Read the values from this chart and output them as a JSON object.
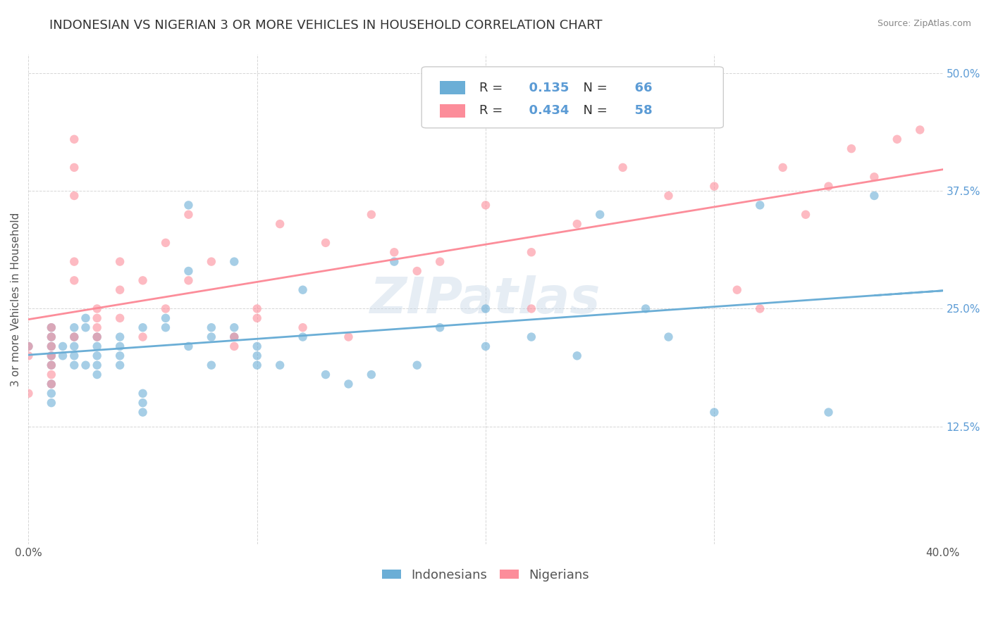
{
  "title": "INDONESIAN VS NIGERIAN 3 OR MORE VEHICLES IN HOUSEHOLD CORRELATION CHART",
  "source": "Source: ZipAtlas.com",
  "xlabel_text": "",
  "ylabel_text": "3 or more Vehicles in Household",
  "watermark": "ZIPatlas",
  "xlim": [
    0.0,
    0.4
  ],
  "ylim": [
    0.0,
    0.52
  ],
  "xticks": [
    0.0,
    0.1,
    0.2,
    0.3,
    0.4
  ],
  "xticklabels": [
    "0.0%",
    "",
    "",
    "",
    "40.0%"
  ],
  "yticks": [
    0.0,
    0.125,
    0.25,
    0.375,
    0.5
  ],
  "yticklabels": [
    "",
    "12.5%",
    "25.0%",
    "37.5%",
    "50.0%"
  ],
  "indonesian_color": "#6baed6",
  "nigerian_color": "#fc8d9a",
  "indonesian_R": 0.135,
  "indonesian_N": 66,
  "nigerian_R": 0.434,
  "nigerian_N": 58,
  "legend_label_indonesian": "Indonesians",
  "legend_label_nigerian": "Nigerians",
  "indonesian_x": [
    0.0,
    0.01,
    0.01,
    0.01,
    0.01,
    0.01,
    0.01,
    0.01,
    0.01,
    0.015,
    0.015,
    0.02,
    0.02,
    0.02,
    0.02,
    0.02,
    0.025,
    0.025,
    0.025,
    0.03,
    0.03,
    0.03,
    0.03,
    0.03,
    0.04,
    0.04,
    0.04,
    0.04,
    0.05,
    0.05,
    0.05,
    0.05,
    0.06,
    0.06,
    0.07,
    0.07,
    0.07,
    0.08,
    0.08,
    0.08,
    0.09,
    0.09,
    0.09,
    0.1,
    0.1,
    0.1,
    0.11,
    0.12,
    0.12,
    0.13,
    0.14,
    0.15,
    0.16,
    0.17,
    0.18,
    0.2,
    0.2,
    0.22,
    0.24,
    0.25,
    0.27,
    0.28,
    0.3,
    0.32,
    0.35,
    0.37
  ],
  "indonesian_y": [
    0.21,
    0.19,
    0.2,
    0.21,
    0.22,
    0.23,
    0.17,
    0.16,
    0.15,
    0.2,
    0.21,
    0.21,
    0.22,
    0.23,
    0.2,
    0.19,
    0.24,
    0.23,
    0.19,
    0.22,
    0.21,
    0.2,
    0.19,
    0.18,
    0.21,
    0.22,
    0.2,
    0.19,
    0.23,
    0.16,
    0.15,
    0.14,
    0.24,
    0.23,
    0.36,
    0.29,
    0.21,
    0.23,
    0.22,
    0.19,
    0.23,
    0.22,
    0.3,
    0.2,
    0.21,
    0.19,
    0.19,
    0.27,
    0.22,
    0.18,
    0.17,
    0.18,
    0.3,
    0.19,
    0.23,
    0.25,
    0.21,
    0.22,
    0.2,
    0.35,
    0.25,
    0.22,
    0.14,
    0.36,
    0.14,
    0.37
  ],
  "nigerian_x": [
    0.0,
    0.0,
    0.0,
    0.01,
    0.01,
    0.01,
    0.01,
    0.01,
    0.01,
    0.01,
    0.02,
    0.02,
    0.02,
    0.02,
    0.02,
    0.02,
    0.03,
    0.03,
    0.03,
    0.03,
    0.04,
    0.04,
    0.04,
    0.05,
    0.05,
    0.06,
    0.06,
    0.07,
    0.07,
    0.08,
    0.09,
    0.09,
    0.1,
    0.1,
    0.11,
    0.12,
    0.13,
    0.14,
    0.15,
    0.16,
    0.17,
    0.18,
    0.2,
    0.22,
    0.22,
    0.24,
    0.26,
    0.28,
    0.3,
    0.31,
    0.32,
    0.33,
    0.34,
    0.35,
    0.36,
    0.37,
    0.38,
    0.39
  ],
  "nigerian_y": [
    0.2,
    0.21,
    0.16,
    0.23,
    0.22,
    0.21,
    0.2,
    0.19,
    0.18,
    0.17,
    0.43,
    0.4,
    0.37,
    0.3,
    0.28,
    0.22,
    0.25,
    0.24,
    0.23,
    0.22,
    0.3,
    0.27,
    0.24,
    0.28,
    0.22,
    0.32,
    0.25,
    0.35,
    0.28,
    0.3,
    0.22,
    0.21,
    0.25,
    0.24,
    0.34,
    0.23,
    0.32,
    0.22,
    0.35,
    0.31,
    0.29,
    0.3,
    0.36,
    0.31,
    0.25,
    0.34,
    0.4,
    0.37,
    0.38,
    0.27,
    0.25,
    0.4,
    0.35,
    0.38,
    0.42,
    0.39,
    0.43,
    0.44
  ],
  "background_color": "#ffffff",
  "grid_color": "#cccccc",
  "title_fontsize": 13,
  "label_fontsize": 11,
  "tick_fontsize": 11,
  "legend_fontsize": 13,
  "marker_size": 80,
  "marker_alpha": 0.6,
  "line_width": 2.0
}
